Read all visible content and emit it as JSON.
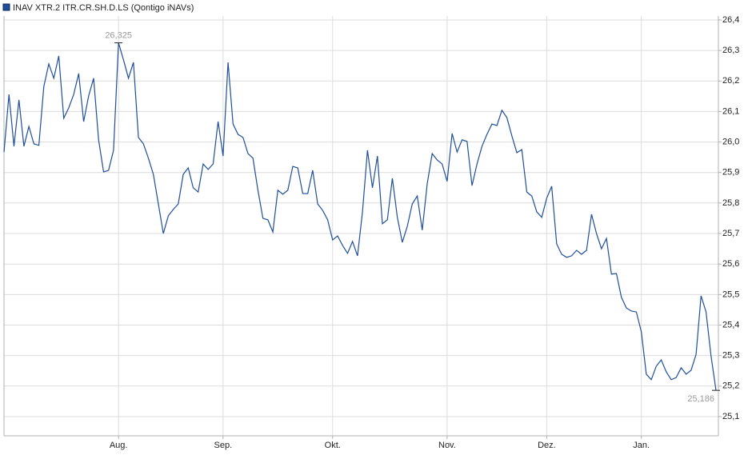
{
  "chart_data": {
    "type": "line",
    "categories": [
      null,
      null,
      null,
      null,
      null,
      null,
      null,
      null,
      null,
      null,
      null,
      null,
      null,
      null,
      null,
      null,
      null,
      null,
      null,
      null,
      null,
      null,
      null,
      "Aug.",
      null,
      null,
      null,
      null,
      null,
      null,
      null,
      null,
      null,
      null,
      null,
      null,
      null,
      null,
      null,
      null,
      null,
      null,
      null,
      null,
      "Sep.",
      null,
      null,
      null,
      null,
      null,
      null,
      null,
      null,
      null,
      null,
      null,
      null,
      null,
      null,
      null,
      null,
      null,
      null,
      null,
      null,
      null,
      "Okt.",
      null,
      null,
      null,
      null,
      null,
      null,
      null,
      null,
      null,
      null,
      null,
      null,
      null,
      null,
      null,
      null,
      null,
      null,
      null,
      null,
      null,
      null,
      "Nov.",
      null,
      null,
      null,
      null,
      null,
      null,
      null,
      null,
      null,
      null,
      null,
      null,
      null,
      null,
      null,
      null,
      null,
      null,
      null,
      "Dez.",
      null,
      null,
      null,
      null,
      null,
      null,
      null,
      null,
      null,
      null,
      null,
      null,
      null,
      null,
      null,
      null,
      null,
      null,
      "Jan.",
      null,
      null,
      null,
      null,
      null,
      null,
      null,
      null,
      null,
      null,
      null,
      null,
      null,
      null,
      null
    ],
    "series": [
      {
        "name": "INAV XTR.2 ITR.CR.SH.D.LS (Qontigo iNAVs)",
        "color": "#1f4e9a",
        "values": [
          25.967,
          26.156,
          25.986,
          26.138,
          25.986,
          26.051,
          25.994,
          25.989,
          26.182,
          26.256,
          26.209,
          26.282,
          26.078,
          26.112,
          26.156,
          26.224,
          26.067,
          26.151,
          26.209,
          26.007,
          25.902,
          25.907,
          25.973,
          26.325,
          26.269,
          26.209,
          26.261,
          26.015,
          25.994,
          25.947,
          25.894,
          25.797,
          25.7,
          25.758,
          25.779,
          25.797,
          25.894,
          25.915,
          25.85,
          25.836,
          25.928,
          25.91,
          25.928,
          26.067,
          25.954,
          26.261,
          26.059,
          26.025,
          26.015,
          25.962,
          25.947,
          25.842,
          25.75,
          25.745,
          25.705,
          25.842,
          25.829,
          25.842,
          25.92,
          25.915,
          25.831,
          25.831,
          25.907,
          25.797,
          25.776,
          25.745,
          25.679,
          25.692,
          25.661,
          25.635,
          25.674,
          25.627,
          25.771,
          25.973,
          25.85,
          25.954,
          25.732,
          25.745,
          25.881,
          25.753,
          25.671,
          25.724,
          25.797,
          25.823,
          25.711,
          25.863,
          25.962,
          25.941,
          25.928,
          25.871,
          26.028,
          25.967,
          26.007,
          26.002,
          25.857,
          25.928,
          25.986,
          26.025,
          26.059,
          26.054,
          26.104,
          26.08,
          26.02,
          25.965,
          25.975,
          25.836,
          25.823,
          25.771,
          25.753,
          25.816,
          25.855,
          25.666,
          25.632,
          25.622,
          25.627,
          25.645,
          25.632,
          25.645,
          25.763,
          25.7,
          25.65,
          25.684,
          25.567,
          25.569,
          25.491,
          25.456,
          25.446,
          25.443,
          25.378,
          25.239,
          25.221,
          25.265,
          25.286,
          25.247,
          25.221,
          25.228,
          25.26,
          25.239,
          25.252,
          25.304,
          25.496,
          25.443,
          25.299,
          25.186
        ],
        "value_labels": [
          null,
          null,
          null,
          null,
          null,
          null,
          null,
          null,
          null,
          null,
          null,
          null,
          null,
          null,
          null,
          null,
          null,
          null,
          null,
          null,
          null,
          null,
          null,
          "26,325",
          null,
          null,
          null,
          null,
          null,
          null,
          null,
          null,
          null,
          null,
          null,
          null,
          null,
          null,
          null,
          null,
          null,
          null,
          null,
          null,
          null,
          null,
          null,
          null,
          null,
          null,
          null,
          null,
          null,
          null,
          null,
          null,
          null,
          null,
          null,
          null,
          null,
          null,
          null,
          null,
          null,
          null,
          null,
          null,
          null,
          null,
          null,
          null,
          null,
          null,
          null,
          null,
          null,
          null,
          null,
          null,
          null,
          null,
          null,
          null,
          null,
          null,
          null,
          null,
          null,
          null,
          null,
          null,
          null,
          null,
          null,
          null,
          null,
          null,
          null,
          null,
          null,
          null,
          null,
          null,
          null,
          null,
          null,
          null,
          null,
          null,
          null,
          null,
          null,
          null,
          null,
          null,
          null,
          null,
          null,
          null,
          null,
          null,
          null,
          null,
          null,
          null,
          null,
          null,
          null,
          null,
          null,
          null,
          null,
          null,
          null,
          null,
          null,
          null,
          null,
          null,
          null,
          null,
          null,
          "25,186"
        ]
      }
    ],
    "ylim": [
      25.037,
      26.413
    ],
    "yticks": [
      {
        "value": 25.1,
        "label": "25,1"
      },
      {
        "value": 25.2,
        "label": "25,2"
      },
      {
        "value": 25.3,
        "label": "25,3"
      },
      {
        "value": 25.4,
        "label": "25,4"
      },
      {
        "value": 25.5,
        "label": "25,5"
      },
      {
        "value": 25.6,
        "label": "25,6"
      },
      {
        "value": 25.7,
        "label": "25,7"
      },
      {
        "value": 25.8,
        "label": "25,8"
      },
      {
        "value": 25.9,
        "label": "25,9"
      },
      {
        "value": 26.0,
        "label": "26,0"
      },
      {
        "value": 26.1,
        "label": "26,1"
      },
      {
        "value": 26.2,
        "label": "26,2"
      },
      {
        "value": 26.3,
        "label": "26,3"
      },
      {
        "value": 26.4,
        "label": "26,4"
      }
    ],
    "grid": true
  }
}
